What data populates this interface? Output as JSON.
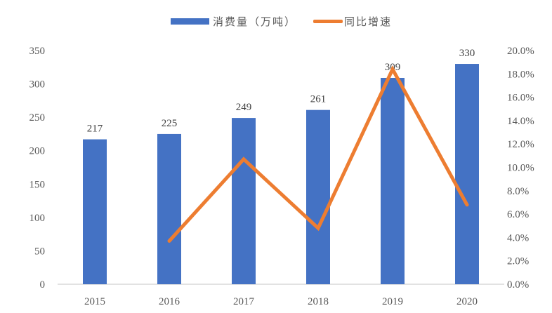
{
  "chart_data": {
    "type": "bar+line",
    "title": "",
    "categories": [
      "2015",
      "2016",
      "2017",
      "2018",
      "2019",
      "2020"
    ],
    "series": [
      {
        "name": "消费量（万吨）",
        "type": "bar",
        "axis": "left",
        "color": "#4472C4",
        "values": [
          217,
          225,
          249,
          261,
          309,
          330
        ],
        "data_labels": [
          "217",
          "225",
          "249",
          "261",
          "309",
          "330"
        ]
      },
      {
        "name": "同比增速",
        "type": "line",
        "axis": "right",
        "color": "#ED7D31",
        "values": [
          null,
          3.7,
          10.7,
          4.8,
          18.4,
          6.8
        ],
        "unit": "%"
      }
    ],
    "xlabel": "",
    "ylabel_left": "",
    "ylabel_right": "",
    "ylim_left": [
      0,
      350
    ],
    "yticks_left": [
      "0",
      "50",
      "100",
      "150",
      "200",
      "250",
      "300",
      "350"
    ],
    "ylim_right": [
      0,
      20
    ],
    "yticks_right": [
      "0.0%",
      "2.0%",
      "4.0%",
      "6.0%",
      "8.0%",
      "10.0%",
      "12.0%",
      "14.0%",
      "16.0%",
      "18.0%",
      "20.0%"
    ],
    "grid": false,
    "legend_position": "top"
  },
  "legend": {
    "bar_label": "消费量（万吨）",
    "line_label": "同比增速"
  }
}
